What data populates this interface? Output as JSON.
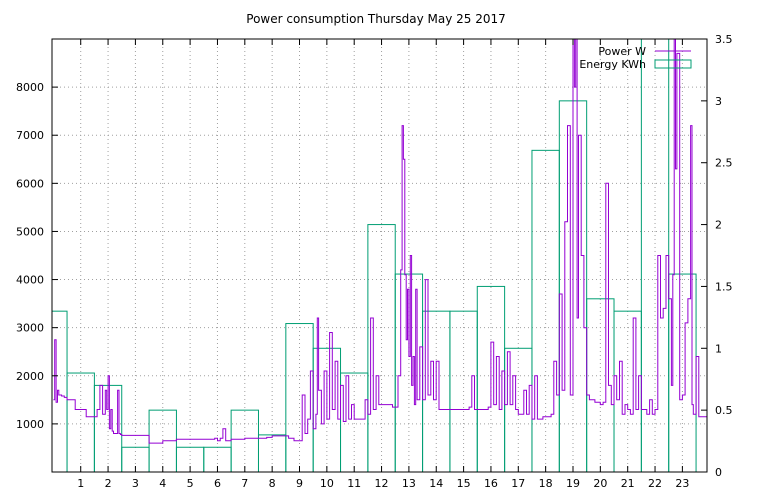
{
  "chart_data": {
    "type": "line",
    "title": "Power consumption Thursday May 25 2017",
    "xlim": [
      -0.05,
      23.9
    ],
    "x_ticks": [
      1,
      2,
      3,
      4,
      5,
      6,
      7,
      8,
      9,
      10,
      11,
      12,
      13,
      14,
      15,
      16,
      17,
      18,
      19,
      20,
      21,
      22,
      23
    ],
    "ylim_left": [
      0,
      9000
    ],
    "y_ticks_left": [
      1000,
      2000,
      3000,
      4000,
      5000,
      6000,
      7000,
      8000
    ],
    "ylim_right": [
      0,
      3.5
    ],
    "y_ticks_right": [
      "0",
      "0.5",
      "1",
      "1.5",
      "2",
      "2.5",
      "3",
      "3.5"
    ],
    "grid": true,
    "legend_position": "top-right",
    "colors": {
      "power": "#9400d3",
      "energy": "#009e73"
    },
    "series": [
      {
        "name": "Power W",
        "axis": "left",
        "x": [
          0.0,
          0.05,
          0.1,
          0.15,
          0.2,
          0.3,
          0.4,
          0.5,
          0.6,
          0.8,
          1.0,
          1.2,
          1.4,
          1.6,
          1.7,
          1.8,
          1.9,
          1.95,
          2.0,
          2.05,
          2.1,
          2.15,
          2.2,
          2.25,
          2.3,
          2.35,
          2.4,
          2.45,
          2.5,
          2.6,
          2.7,
          2.8,
          2.9,
          3.0,
          3.2,
          3.4,
          3.5,
          3.6,
          3.8,
          4.0,
          4.5,
          5.0,
          5.5,
          5.9,
          6.0,
          6.1,
          6.2,
          6.3,
          6.5,
          7.0,
          7.5,
          7.8,
          8.0,
          8.2,
          8.4,
          8.6,
          8.8,
          9.0,
          9.1,
          9.2,
          9.3,
          9.4,
          9.5,
          9.6,
          9.65,
          9.7,
          9.8,
          9.9,
          10.0,
          10.1,
          10.2,
          10.3,
          10.4,
          10.5,
          10.6,
          10.7,
          10.8,
          10.9,
          11.0,
          11.2,
          11.4,
          11.5,
          11.6,
          11.7,
          11.8,
          11.9,
          12.0,
          12.2,
          12.4,
          12.6,
          12.7,
          12.75,
          12.8,
          12.85,
          12.9,
          12.95,
          13.0,
          13.05,
          13.1,
          13.15,
          13.2,
          13.25,
          13.3,
          13.4,
          13.5,
          13.6,
          13.7,
          13.8,
          13.9,
          14.0,
          14.1,
          14.2,
          14.3,
          14.4,
          14.5,
          14.6,
          14.7,
          14.8,
          14.9,
          15.0,
          15.1,
          15.2,
          15.3,
          15.4,
          15.5,
          15.6,
          15.7,
          15.8,
          15.9,
          16.0,
          16.1,
          16.2,
          16.3,
          16.4,
          16.5,
          16.6,
          16.7,
          16.8,
          16.9,
          17.0,
          17.1,
          17.2,
          17.3,
          17.4,
          17.5,
          17.6,
          17.7,
          17.8,
          17.9,
          18.0,
          18.1,
          18.2,
          18.3,
          18.4,
          18.5,
          18.6,
          18.7,
          18.8,
          18.9,
          19.0,
          19.05,
          19.1,
          19.15,
          19.2,
          19.3,
          19.4,
          19.5,
          19.6,
          19.7,
          19.8,
          19.9,
          20.0,
          20.1,
          20.2,
          20.3,
          20.4,
          20.5,
          20.6,
          20.7,
          20.8,
          20.9,
          21.0,
          21.1,
          21.2,
          21.3,
          21.4,
          21.5,
          21.6,
          21.7,
          21.8,
          21.9,
          22.0,
          22.1,
          22.2,
          22.3,
          22.4,
          22.5,
          22.6,
          22.65,
          22.7,
          22.75,
          22.8,
          22.9,
          23.0,
          23.1,
          23.2,
          23.3,
          23.35,
          23.4,
          23.5,
          23.6,
          23.7,
          23.8
        ],
        "values": [
          1500,
          2750,
          1450,
          1700,
          1600,
          1580,
          1550,
          1500,
          1500,
          1300,
          1300,
          1150,
          1150,
          1300,
          1800,
          1200,
          1700,
          1300,
          2000,
          900,
          1300,
          850,
          800,
          800,
          800,
          1700,
          800,
          780,
          760,
          760,
          760,
          760,
          760,
          760,
          760,
          760,
          600,
          600,
          600,
          650,
          680,
          680,
          680,
          700,
          650,
          700,
          900,
          650,
          680,
          700,
          700,
          720,
          750,
          750,
          750,
          700,
          650,
          650,
          1600,
          800,
          1100,
          2100,
          900,
          1200,
          3200,
          1700,
          1000,
          2100,
          1100,
          2900,
          1300,
          2300,
          1100,
          1800,
          1050,
          2000,
          1100,
          1400,
          1100,
          1100,
          1500,
          1200,
          3200,
          1300,
          2000,
          1400,
          1400,
          1400,
          1350,
          2000,
          4200,
          7200,
          6500,
          4100,
          2750,
          3800,
          2400,
          4500,
          1800,
          2400,
          1400,
          3800,
          1500,
          2600,
          1500,
          4000,
          1600,
          2300,
          1500,
          2300,
          1300,
          1300,
          1300,
          1300,
          1300,
          1300,
          1300,
          1300,
          1300,
          1300,
          1300,
          1350,
          2000,
          1300,
          1300,
          1300,
          1300,
          1300,
          1350,
          2700,
          1400,
          2400,
          1300,
          2100,
          1400,
          2500,
          1400,
          2000,
          1300,
          1200,
          1200,
          1700,
          1200,
          1800,
          1100,
          2000,
          1100,
          1100,
          1150,
          1150,
          1150,
          1200,
          2300,
          1600,
          3700,
          1700,
          5200,
          7200,
          1600,
          9000,
          8000,
          9000,
          3200,
          7000,
          4500,
          3000,
          1600,
          1500,
          1500,
          1450,
          1450,
          1400,
          1450,
          6000,
          1800,
          1400,
          2000,
          1500,
          2300,
          1200,
          1400,
          1300,
          1200,
          3200,
          1300,
          2000,
          1300,
          1300,
          1200,
          1500,
          1200,
          1300,
          4500,
          3200,
          3400,
          4500,
          3600,
          1800,
          4100,
          9000,
          6300,
          8700,
          1500,
          1600,
          3100,
          3600,
          7200,
          1400,
          1200,
          2400,
          1150,
          1150,
          1150
        ]
      },
      {
        "name": "Energy KWh",
        "axis": "right",
        "hours": [
          0,
          1,
          2,
          3,
          4,
          5,
          6,
          7,
          8,
          9,
          10,
          11,
          12,
          13,
          14,
          15,
          16,
          17,
          18,
          19,
          20,
          21,
          22,
          23
        ],
        "values": [
          1.3,
          0.8,
          0.7,
          0.2,
          0.5,
          0.2,
          0.2,
          0.5,
          0.3,
          1.2,
          1.0,
          0.8,
          2.0,
          1.6,
          1.3,
          1.3,
          1.5,
          1.0,
          2.6,
          3.0,
          1.4,
          1.3,
          3.5,
          1.6
        ]
      }
    ]
  }
}
